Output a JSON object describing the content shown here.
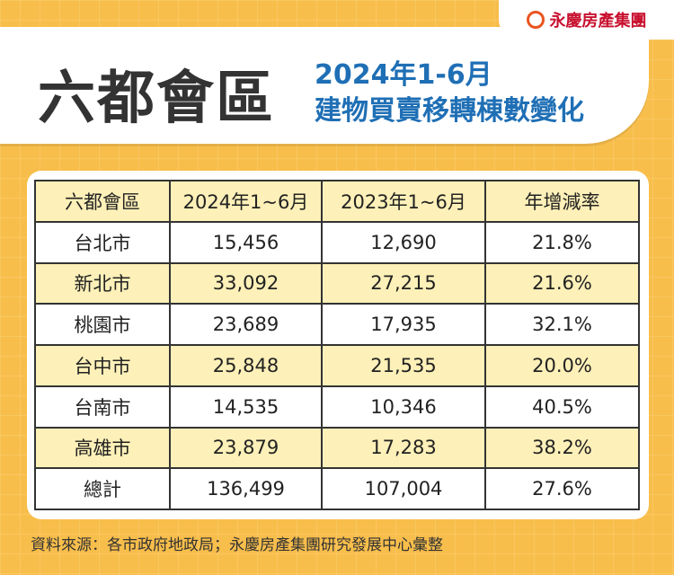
{
  "brand": "永慶房產集團",
  "header": {
    "title": "六都會區",
    "subtitle_line1": "2024年1-6月",
    "subtitle_line2": "建物買賣移轉棟數變化"
  },
  "table": {
    "columns": [
      "六都會區",
      "2024年1~6月",
      "2023年1~6月",
      "年增減率"
    ],
    "rows": [
      [
        "台北市",
        "15,456",
        "12,690",
        "21.8%"
      ],
      [
        "新北市",
        "33,092",
        "27,215",
        "21.6%"
      ],
      [
        "桃園市",
        "23,689",
        "17,935",
        "32.1%"
      ],
      [
        "台中市",
        "25,848",
        "21,535",
        "20.0%"
      ],
      [
        "台南市",
        "14,535",
        "10,346",
        "40.5%"
      ],
      [
        "高雄市",
        "23,879",
        "17,283",
        "38.2%"
      ],
      [
        "總計",
        "136,499",
        "107,004",
        "27.6%"
      ]
    ]
  },
  "source": "資料來源：各市政府地政局；永慶房產集團研究發展中心彙整"
}
